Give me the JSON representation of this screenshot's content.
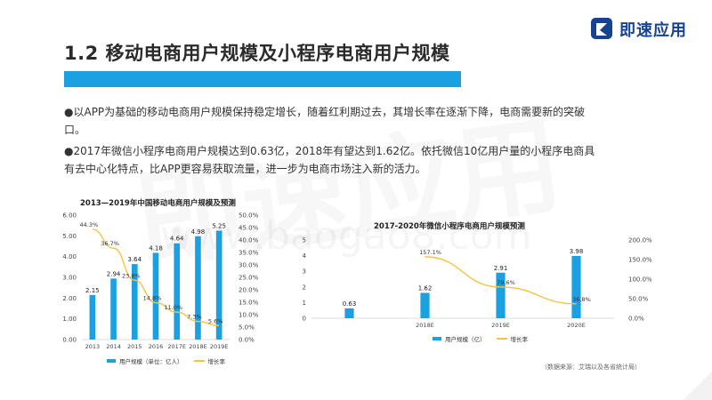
{
  "header": {
    "title": "1.2 移动电商用户规模及小程序电商用户规模",
    "logo_text": "即速应用"
  },
  "bullets": [
    "以APP为基础的移动电商用户规模保持稳定增长，随着红利期过去，其增长率在逐渐下降，电商需要新的突破口。",
    "2017年微信小程序电商用户规模达到0.63亿，2018年有望达到1.62亿。依托微信10亿用户量的小程序电商具有去中心化特点，比APP更容易获取流量，进一步为电商市场注入新的活力。"
  ],
  "source": "（数据来源：艾瑞以及各省统计局）",
  "watermark": "即速应用",
  "watermark_url": "www.baogao8.com",
  "colors": {
    "bar": "#1ba1e2",
    "line": "#f5c342",
    "title_bar": "#1ba1e2"
  },
  "chart_data": [
    {
      "type": "bar",
      "title": "2013—2019年中国移动电商用户规模及预测",
      "categories": [
        "2013",
        "2014",
        "2015",
        "2016",
        "2017E",
        "2018E",
        "2019E"
      ],
      "series": [
        {
          "name": "用户规模（单位：亿人）",
          "values": [
            2.15,
            2.94,
            3.64,
            4.18,
            4.64,
            4.98,
            5.25
          ],
          "axis": "left"
        },
        {
          "name": "增长率",
          "type": "line",
          "values": [
            44.3,
            36.7,
            23.8,
            14.8,
            11.0,
            7.3,
            5.6
          ],
          "labels": [
            "44.3%",
            "36.7%",
            "23.8%",
            "14.8%",
            "11.0%",
            "7.3%",
            "5.6%"
          ],
          "axis": "right"
        }
      ],
      "bar_labels": [
        "2.15",
        "2.94",
        "3.64",
        "4.18",
        "4.64",
        "4.98",
        "5.25"
      ],
      "ylim_left": [
        0,
        6
      ],
      "left_ticks": [
        "0.00",
        "1.00",
        "2.00",
        "3.00",
        "4.00",
        "5.00",
        "6.00"
      ],
      "ylim_right": [
        0,
        50
      ],
      "right_ticks": [
        "0.0%",
        "5.0%",
        "10.0%",
        "15.0%",
        "20.0%",
        "25.0%",
        "30.0%",
        "35.0%",
        "40.0%",
        "45.0%",
        "50.0%"
      ],
      "legend_bar": "用户规模（单位：亿人）",
      "legend_line": "增长率",
      "legend": "bottom"
    },
    {
      "type": "bar",
      "title": "2017-2020年微信小程序电商用户规模预测",
      "categories": [
        "",
        "2018E",
        "2019E",
        "2020E"
      ],
      "series": [
        {
          "name": "用户规模（亿）",
          "values": [
            0.63,
            1.62,
            2.91,
            3.98
          ],
          "axis": "left"
        },
        {
          "name": "增长率",
          "type": "line",
          "values": [
            null,
            157.1,
            79.6,
            36.8
          ],
          "labels": [
            "",
            "157.1%",
            "79.6%",
            "36.8%"
          ],
          "axis": "right"
        }
      ],
      "bar_labels": [
        "0.63",
        "1.62",
        "2.91",
        "3.98"
      ],
      "ylim_left": [
        0,
        5
      ],
      "left_ticks": [
        "0",
        "1",
        "2",
        "3",
        "4",
        "5"
      ],
      "ylim_right": [
        0,
        200
      ],
      "right_ticks": [
        "0.0%",
        "50.0%",
        "100.0%",
        "150.0%",
        "200.0%"
      ],
      "legend_bar": "用户规模（亿）",
      "legend_line": "增长率",
      "legend": "bottom"
    }
  ]
}
